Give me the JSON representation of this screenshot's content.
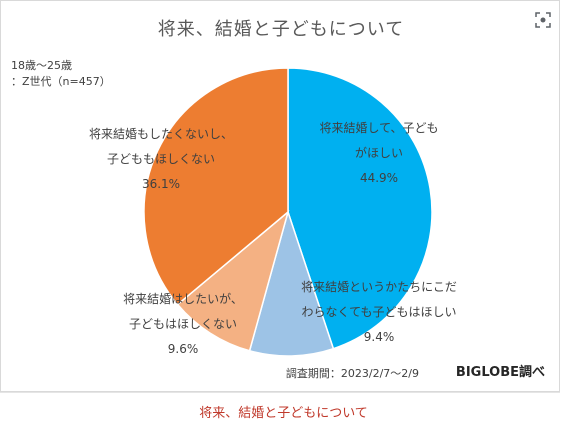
{
  "figure": {
    "caption": "将来、結婚と子どもについて",
    "lens_icon": "image-search-icon",
    "note": "調査期間：2023/2/7～2/9",
    "brand": "BIGLOBE調べ",
    "sample_line1": "18歳～25歳",
    "sample_line2": "：Z世代（n=457）"
  },
  "chart_data": {
    "type": "pie",
    "title": "将来、結婚と子どもについて",
    "start_angle": "12 o'clock",
    "direction": "clockwise",
    "slices": [
      {
        "label": [
          "将来結婚して、子ども",
          "がほしい"
        ],
        "value": 44.9,
        "value_text": "44.9%",
        "color": "#00b0f0"
      },
      {
        "label": [
          "将来結婚というかたちにこだ",
          "わらなくても子どもはほしい"
        ],
        "value": 9.4,
        "value_text": "9.4%",
        "color": "#9dc3e6"
      },
      {
        "label": [
          "将来結婚はしたいが、",
          "子どもはほしくない"
        ],
        "value": 9.6,
        "value_text": "9.6%",
        "color": "#f4b183"
      },
      {
        "label": [
          "将来結婚もしたくないし、",
          "子どももほしくない"
        ],
        "value": 36.1,
        "value_text": "36.1%",
        "color": "#ed7d31"
      }
    ]
  }
}
